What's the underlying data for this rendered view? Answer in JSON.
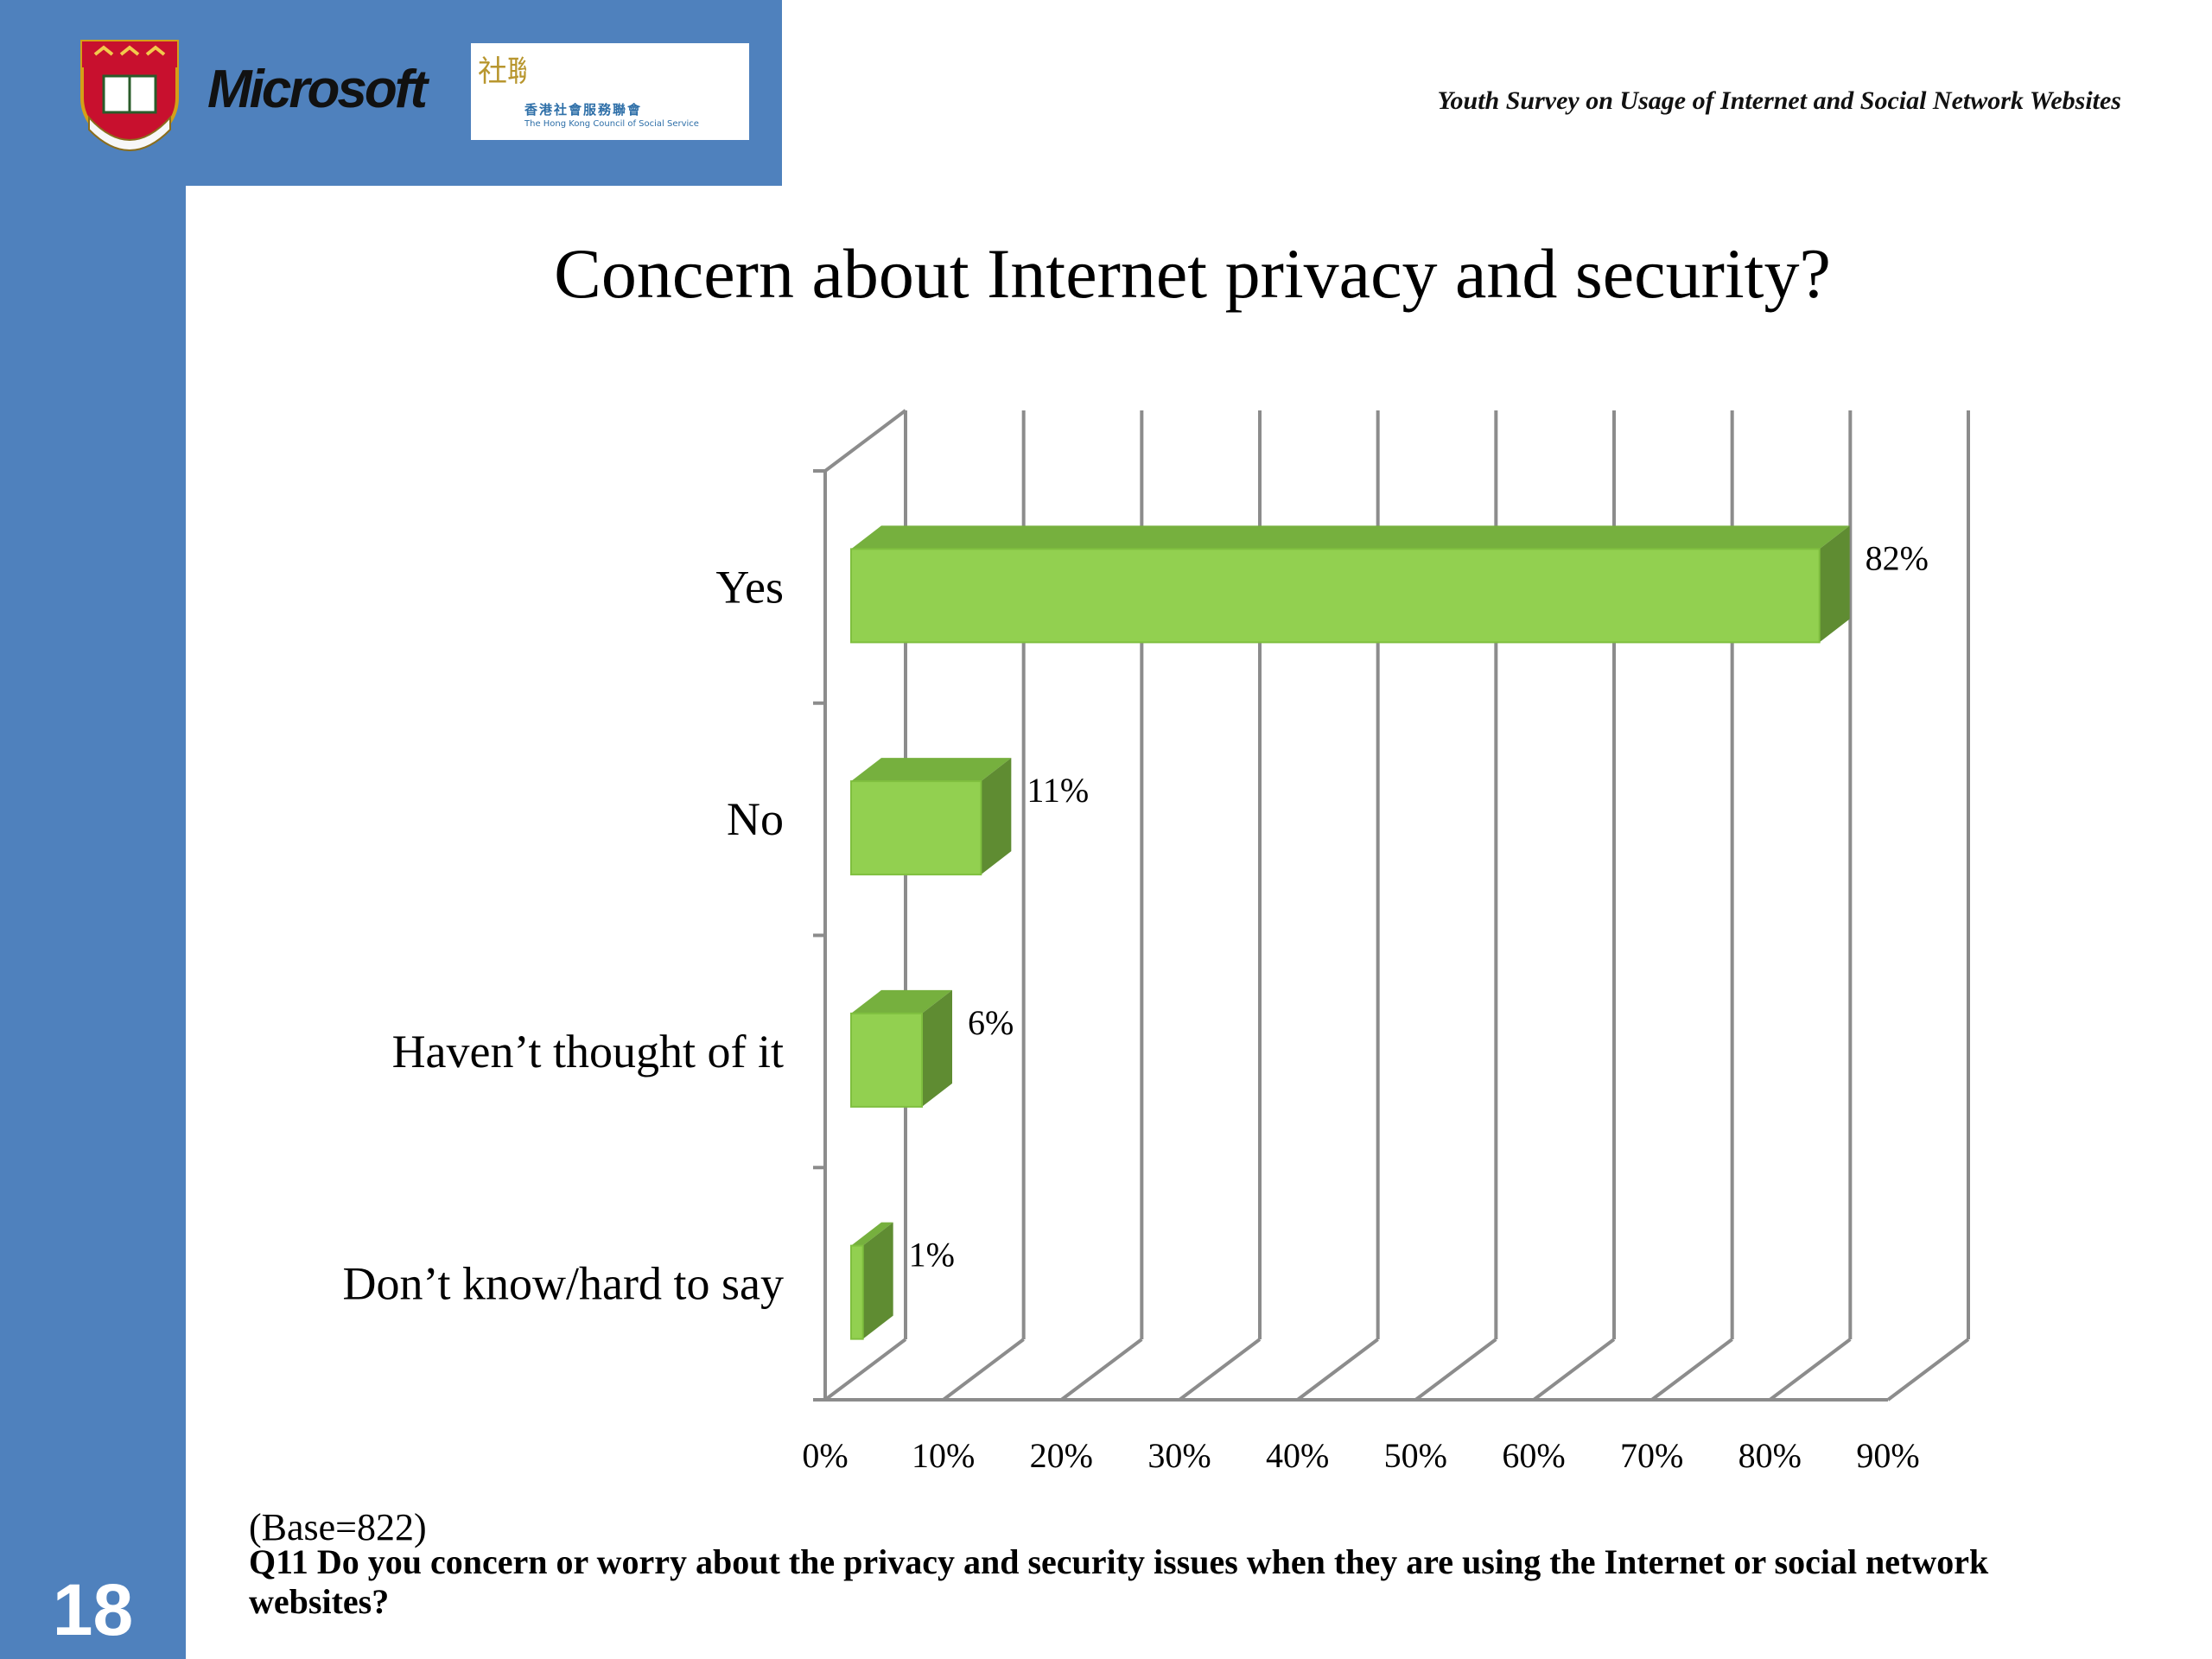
{
  "header": {
    "title": "Youth Survey on Usage of Internet and Social Network Websites",
    "microsoft_logo": "Microsoft",
    "hkcss_logo_cn": "香港社會服務聯會",
    "hkcss_logo_en": "The Hong Kong Council of Social Service",
    "hkcss_mark": "社聯"
  },
  "slide": {
    "title": "Concern about Internet privacy and security?",
    "page_number": "18"
  },
  "footer": {
    "base_note": "(Base=822)",
    "question": "Q11   Do you concern or worry about the privacy and security issues when they are using the Internet or social network websites?"
  },
  "colors": {
    "accent_blue": "#4f81bd",
    "bar_front": "#92d050",
    "bar_top": "#76b03e",
    "bar_side": "#5f8c32"
  },
  "chart_data": {
    "type": "bar",
    "orientation": "horizontal",
    "style": "3d",
    "categories": [
      "Yes",
      "No",
      "Haven’t thought of it",
      "Don’t know/hard to say"
    ],
    "values": [
      82,
      11,
      6,
      1
    ],
    "data_labels": [
      "82%",
      "11%",
      "6%",
      "1%"
    ],
    "x_ticks": [
      "0%",
      "10%",
      "20%",
      "30%",
      "40%",
      "50%",
      "60%",
      "70%",
      "80%",
      "90%"
    ],
    "xlim": [
      0,
      90
    ],
    "unit": "%",
    "grid": true,
    "title": "",
    "xlabel": "",
    "ylabel": ""
  }
}
